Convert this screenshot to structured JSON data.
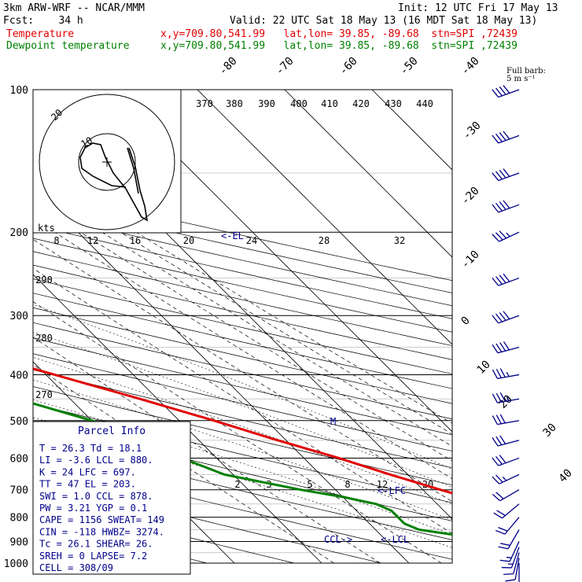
{
  "header": {
    "model": "3km ARW-WRF -- NCAR/MMM",
    "init": "Init: 12 UTC Fri 17 May 13",
    "fcst": "Fcst:    34 h",
    "valid": "Valid: 22 UTC Sat 18 May 13 (16 MDT Sat 18 May 13)",
    "temp_label": "Temperature",
    "dew_label": "Dewpoint temperature",
    "loc": "x,y=709.80,541.99   lat,lon= 39.85, -89.68  stn=SPI ,72439"
  },
  "colors": {
    "temperature": "#e00000",
    "dewpoint": "#008000",
    "barbs": "#00008b",
    "axes": "#000000"
  },
  "wind_scale": {
    "title": "Full barb:",
    "value": "5 m s⁻¹"
  },
  "hodograph": {
    "units": "kts",
    "ring_labels": [
      "10",
      "20"
    ]
  },
  "labels": {
    "el": "<-EL",
    "lfc": "<-LFC",
    "lcl": "<-LCL",
    "ccl": "CCL->",
    "m": "M"
  },
  "parcel_info": {
    "title": "Parcel Info",
    "lines": [
      "T  =    26.3  Td =  18.1",
      "LI =    -3.6  LCL =  880.",
      "K  =     24   LFC =  697.",
      "TT =     47   EL  =  203.",
      "SWI =    1.0  CCL =  878.",
      "PW =    3.21  YGP =   0.1",
      "CAPE =  1156  SWEAT=  149",
      "CIN =   -118  HWBZ= 3274.",
      "Tc  =   26.1  SHEAR=  26.",
      "SREH =     0  LAPSE=  7.2",
      "CELL = 308/09"
    ]
  },
  "chart_data": {
    "type": "line",
    "diagram": "skew-T log-p",
    "y_axis": {
      "label": "",
      "ticks": [
        100,
        200,
        300,
        400,
        500,
        600,
        700,
        800,
        900,
        1000
      ],
      "scale": "log"
    },
    "isotherm_labels": [
      -80,
      -70,
      -60,
      -50,
      -40,
      -30,
      -20,
      -10,
      0,
      10,
      20,
      30,
      40
    ],
    "theta_labels": [
      370,
      380,
      390,
      400,
      410,
      420,
      430,
      440,
      290,
      280,
      270
    ],
    "mixing_ratio_labels_upper": [
      8,
      12,
      16,
      20,
      24,
      28,
      32
    ],
    "mixing_ratio_labels_lower": [
      2,
      3,
      5,
      8,
      12,
      20
    ],
    "series": [
      {
        "name": "Temperature",
        "p": [
          1000,
          975,
          950,
          925,
          900,
          875,
          850,
          825,
          800,
          775,
          750,
          725,
          700,
          650,
          600,
          550,
          500,
          450,
          400,
          350,
          300,
          250,
          225,
          200,
          175,
          150,
          125,
          110,
          100
        ],
        "t": [
          30,
          27,
          24,
          22,
          21.5,
          22,
          22,
          21,
          19.5,
          18,
          16,
          14,
          12,
          8,
          4,
          -1,
          -6,
          -12,
          -19,
          -27,
          -36,
          -47,
          -53,
          -59,
          -62,
          -60,
          -60,
          -64,
          -66
        ]
      },
      {
        "name": "Dewpoint temperature",
        "p": [
          1000,
          975,
          950,
          925,
          900,
          875,
          850,
          825,
          800,
          775,
          750,
          725,
          700,
          650,
          600,
          550,
          500,
          450,
          400,
          350,
          300,
          275,
          250,
          225,
          200,
          175,
          150,
          125,
          110,
          100
        ],
        "t": [
          19,
          18,
          18,
          16,
          13,
          9,
          5,
          4,
          4,
          4,
          3,
          0,
          -4,
          -11,
          -14,
          -16,
          -20,
          -26,
          -35,
          -49,
          -57,
          -57,
          -61,
          -69,
          -71,
          -76,
          -78,
          -81,
          -81,
          -81
        ]
      }
    ],
    "wind_barbs": {
      "p": [
        1000,
        975,
        950,
        925,
        900,
        850,
        800,
        750,
        700,
        650,
        600,
        550,
        500,
        450,
        400,
        350,
        300,
        250,
        200,
        175,
        150,
        125,
        100
      ],
      "dir": [
        180,
        190,
        195,
        200,
        205,
        210,
        220,
        230,
        240,
        245,
        250,
        255,
        260,
        260,
        260,
        255,
        250,
        250,
        245,
        250,
        250,
        250,
        250
      ],
      "spd": [
        10,
        12,
        14,
        16,
        18,
        20,
        20,
        22,
        24,
        26,
        30,
        32,
        34,
        36,
        38,
        40,
        42,
        40,
        36,
        40,
        44,
        44,
        40
      ]
    },
    "hodograph_curve": [
      [
        0.3,
        0.05
      ],
      [
        0.27,
        -0.02
      ],
      [
        0.22,
        -0.12
      ],
      [
        0.18,
        -0.2
      ],
      [
        0.15,
        -0.3
      ],
      [
        0.1,
        -0.4
      ],
      [
        0.05,
        -0.46
      ],
      [
        0.0,
        -0.5
      ],
      [
        0.02,
        -0.55
      ],
      [
        0.05,
        -0.62
      ]
    ]
  }
}
